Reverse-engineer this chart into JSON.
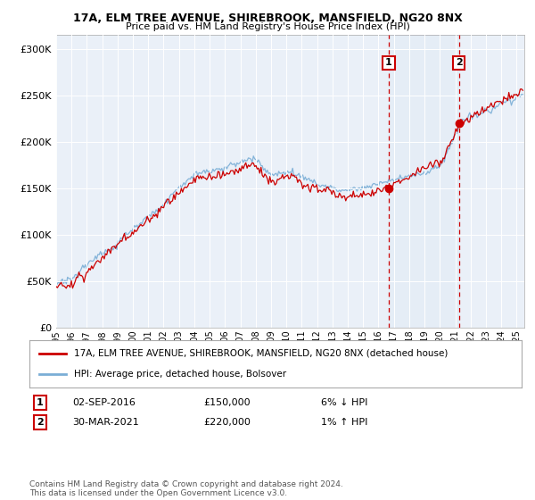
{
  "title_line1": "17A, ELM TREE AVENUE, SHIREBROOK, MANSFIELD, NG20 8NX",
  "title_line2": "Price paid vs. HM Land Registry's House Price Index (HPI)",
  "ylabel_ticks": [
    "£0",
    "£50K",
    "£100K",
    "£150K",
    "£200K",
    "£250K",
    "£300K"
  ],
  "ytick_values": [
    0,
    50000,
    100000,
    150000,
    200000,
    250000,
    300000
  ],
  "ylim": [
    0,
    315000
  ],
  "xlim_start": 1995.0,
  "xlim_end": 2025.5,
  "hpi_color": "#7aaed6",
  "price_color": "#cc0000",
  "shade_color": "#dce8f5",
  "marker1_date_x": 2016.67,
  "marker1_price": 150000,
  "marker2_date_x": 2021.25,
  "marker2_price": 220000,
  "legend_label1": "17A, ELM TREE AVENUE, SHIREBROOK, MANSFIELD, NG20 8NX (detached house)",
  "legend_label2": "HPI: Average price, detached house, Bolsover",
  "annotation1_date": "02-SEP-2016",
  "annotation1_price": "£150,000",
  "annotation1_change": "6% ↓ HPI",
  "annotation2_date": "30-MAR-2021",
  "annotation2_price": "£220,000",
  "annotation2_change": "1% ↑ HPI",
  "footer": "Contains HM Land Registry data © Crown copyright and database right 2024.\nThis data is licensed under the Open Government Licence v3.0.",
  "bg_color": "#ffffff",
  "plot_bg_color": "#eaf0f8"
}
